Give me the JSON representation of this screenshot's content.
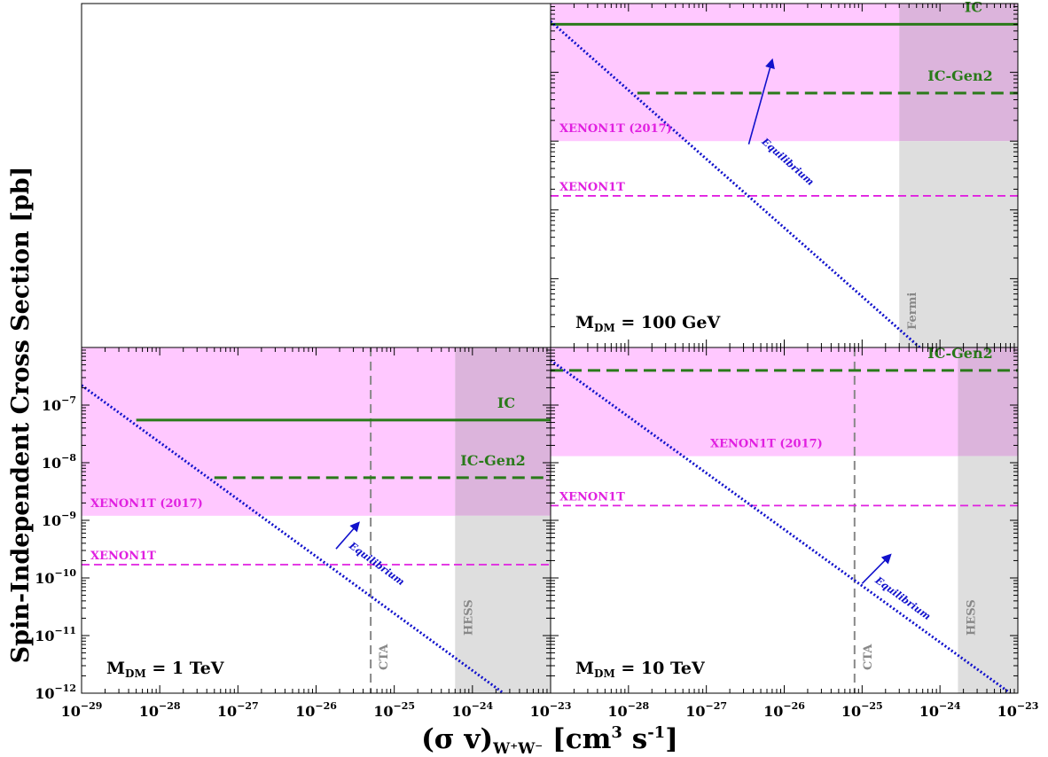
{
  "chart_data": [
    {
      "panel": "top-right",
      "type": "line",
      "xscale": "log",
      "yscale": "log",
      "xlim": [
        1e-29,
        1e-23
      ],
      "ylim": [
        1e-12,
        1e-07
      ],
      "xtick_labels": [
        "10^-28",
        "10^-27",
        "10^-26",
        "10^-25",
        "10^-24",
        "10^-23"
      ],
      "mass_label": {
        "prefix": "M",
        "subscript": "DM",
        "suffix": " = 100 GeV"
      },
      "regions": [
        {
          "label": "XENON1T (2017)",
          "kind": "excluded-above",
          "y": 1e-09,
          "color": "#ff55ff",
          "label_side": "left"
        },
        {
          "label": "Fermi",
          "kind": "excluded-right",
          "x": 3e-25,
          "color": "#c8c8c8",
          "label_side": "bottom"
        }
      ],
      "hlines": [
        {
          "label": "IC",
          "y": 5e-08,
          "from_x": 1e-29,
          "color": "#2a7a1a",
          "style": "solid"
        },
        {
          "label": "IC-Gen2",
          "y": 5e-09,
          "from_x": 1.3e-28,
          "color": "#2a7a1a",
          "style": "dashed"
        },
        {
          "label": "XENON1T",
          "y": 1.6e-10,
          "from_x": 1e-29,
          "color": "#e020e0",
          "style": "dashed"
        }
      ],
      "vlines": [],
      "equilibrium": {
        "label": "Equilibrium",
        "x": [
          1e-29,
          1e-23
        ],
        "y": [
          5.5e-08,
          5.5e-14
        ],
        "color": "#1111cc",
        "arrow_from": [
          3.5e-27,
          9e-10
        ],
        "arrow_to": [
          7e-27,
          1.5e-08
        ]
      }
    },
    {
      "panel": "bottom-left",
      "type": "line",
      "xscale": "log",
      "yscale": "log",
      "xlim": [
        1e-29,
        1e-23
      ],
      "ylim": [
        1e-12,
        1e-06
      ],
      "xtick_labels": [
        "10^-29",
        "10^-28",
        "10^-27",
        "10^-26",
        "10^-25",
        "10^-24",
        "10^-23"
      ],
      "ytick_labels": [
        "10^-12",
        "10^-11",
        "10^-10",
        "10^-9",
        "10^-8",
        "10^-7"
      ],
      "mass_label": {
        "prefix": "M",
        "subscript": "DM",
        "suffix": " = 1 TeV"
      },
      "regions": [
        {
          "label": "XENON1T (2017)",
          "kind": "excluded-above",
          "y": 1.2e-09,
          "color": "#ff55ff",
          "label_side": "left"
        },
        {
          "label": "HESS",
          "kind": "excluded-right",
          "x": 6e-25,
          "color": "#c8c8c8",
          "label_side": "bottom"
        }
      ],
      "hlines": [
        {
          "label": "IC",
          "y": 5.5e-08,
          "from_x": 5e-29,
          "color": "#2a7a1a",
          "style": "solid"
        },
        {
          "label": "IC-Gen2",
          "y": 5.5e-09,
          "from_x": 5e-28,
          "color": "#2a7a1a",
          "style": "dashed"
        },
        {
          "label": "XENON1T",
          "y": 1.7e-10,
          "from_x": 1e-29,
          "color": "#e020e0",
          "style": "dashed"
        }
      ],
      "vlines": [
        {
          "label": "CTA",
          "x": 5e-26,
          "color": "#888888",
          "style": "dashed"
        }
      ],
      "equilibrium": {
        "label": "Equilibrium",
        "x": [
          1e-29,
          2.5e-24
        ],
        "y": [
          2.2e-07,
          1e-12
        ],
        "color": "#1111cc",
        "arrow_from": [
          1.8e-26,
          3.2e-10
        ],
        "arrow_to": [
          3.5e-26,
          9e-10
        ]
      }
    },
    {
      "panel": "bottom-right",
      "type": "line",
      "xscale": "log",
      "yscale": "log",
      "xlim": [
        1e-29,
        1e-23
      ],
      "ylim": [
        1e-12,
        1e-06
      ],
      "xtick_labels": [
        "10^-28",
        "10^-27",
        "10^-26",
        "10^-25",
        "10^-24",
        "10^-23"
      ],
      "mass_label": {
        "prefix": "M",
        "subscript": "DM",
        "suffix": " = 10 TeV"
      },
      "regions": [
        {
          "label": "XENON1T (2017)",
          "kind": "excluded-above",
          "y": 1.3e-08,
          "color": "#ff55ff",
          "label_side": "left"
        },
        {
          "label": "HESS",
          "kind": "excluded-right",
          "x": 1.7e-24,
          "color": "#c8c8c8",
          "label_side": "bottom"
        }
      ],
      "hlines": [
        {
          "label": "IC-Gen2",
          "y": 4e-07,
          "from_x": 1e-29,
          "color": "#2a7a1a",
          "style": "dashed"
        },
        {
          "label": "XENON1T",
          "y": 1.8e-09,
          "from_x": 1e-29,
          "color": "#e020e0",
          "style": "dashed"
        }
      ],
      "vlines": [
        {
          "label": "CTA",
          "x": 8e-26,
          "color": "#888888",
          "style": "dashed"
        }
      ],
      "equilibrium": {
        "label": "Equilibrium",
        "x": [
          1e-29,
          8e-24
        ],
        "y": [
          6e-07,
          1e-12
        ],
        "color": "#1111cc",
        "arrow_from": [
          1e-25,
          8e-11
        ],
        "arrow_to": [
          2.3e-25,
          2.5e-10
        ]
      }
    }
  ],
  "axes": {
    "ylabel": "Spin-Independent Cross Section [pb]",
    "xlabel_main": "(σ v)",
    "xlabel_subscript": "W⁺W⁻",
    "xlabel_unit_prefix": " [cm",
    "xlabel_unit_sup1": "3",
    "xlabel_unit_middle": " s",
    "xlabel_unit_sup2": "-1",
    "xlabel_unit_suffix": "]"
  }
}
